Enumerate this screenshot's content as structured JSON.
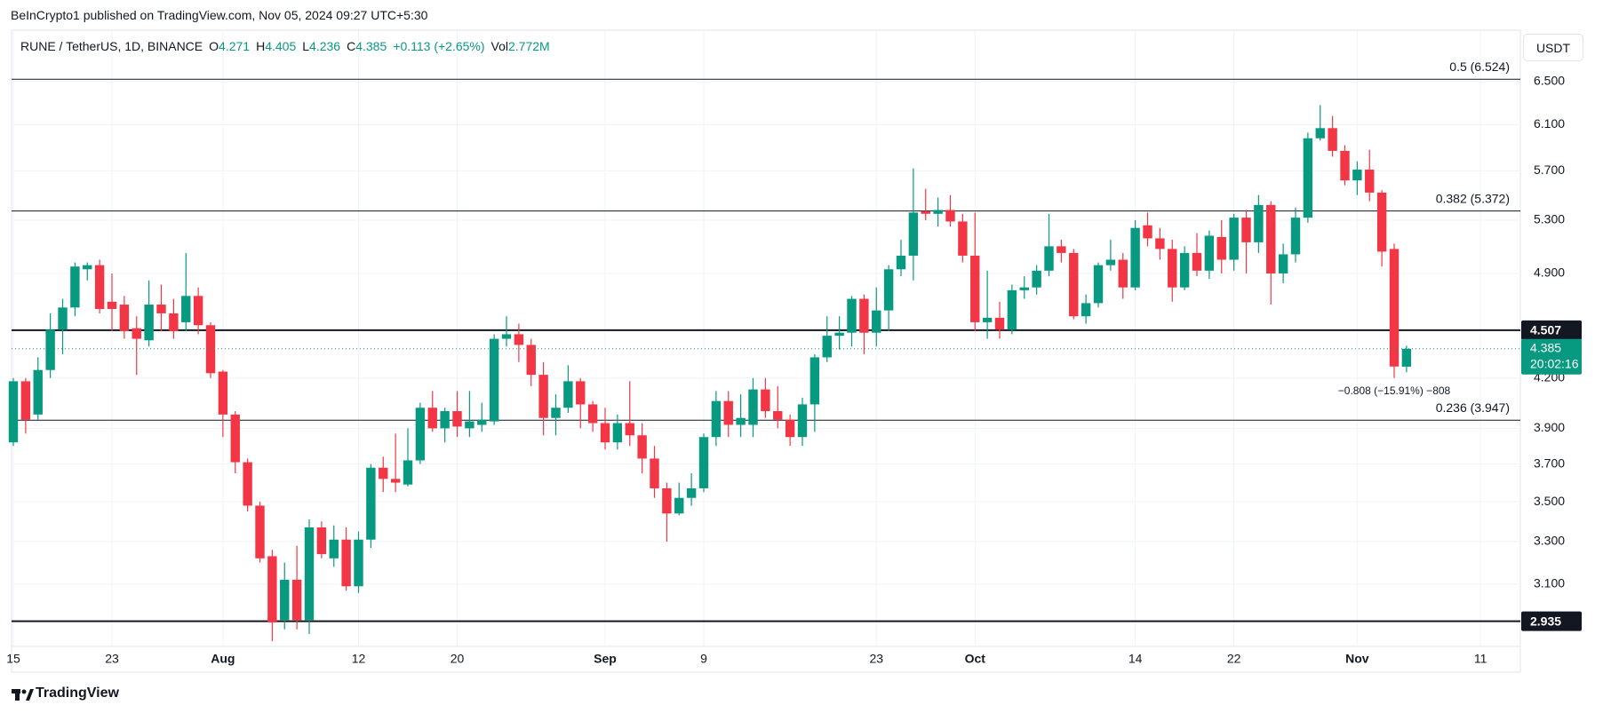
{
  "header": {
    "published": "BeInCrypto1 published on TradingView.com, Nov 05, 2024 09:27 UTC+5:30",
    "brand": "TradingView"
  },
  "chart_data": {
    "type": "candlestick",
    "legend": {
      "symbol": "RUNE / TetherUS, 1D, BINANCE",
      "ohlc_labels": [
        "O",
        "H",
        "L",
        "C"
      ],
      "change": "+0.113 (+2.65%)",
      "volume_label": "Vol",
      "volume": "2.772M"
    },
    "currency": "USDT",
    "categories": [
      "15",
      null,
      null,
      null,
      null,
      null,
      null,
      null,
      "23",
      null,
      null,
      null,
      null,
      null,
      null,
      null,
      null,
      "Aug",
      null,
      null,
      null,
      null,
      null,
      null,
      null,
      null,
      null,
      null,
      "12",
      null,
      null,
      null,
      null,
      null,
      null,
      null,
      "20",
      null,
      null,
      null,
      null,
      null,
      null,
      null,
      null,
      null,
      null,
      null,
      "Sep",
      null,
      null,
      null,
      null,
      null,
      null,
      null,
      "9",
      null,
      null,
      null,
      null,
      null,
      null,
      null,
      null,
      null,
      null,
      null,
      null,
      null,
      "23",
      null,
      null,
      null,
      null,
      null,
      null,
      null,
      "Oct",
      null,
      null,
      null,
      null,
      null,
      null,
      null,
      null,
      null,
      null,
      null,
      null,
      "14",
      null,
      null,
      null,
      null,
      null,
      null,
      null,
      "22",
      null,
      null,
      null,
      null,
      null,
      null,
      null,
      null,
      null,
      "Nov",
      null,
      null,
      null,
      null,
      null,
      null,
      null,
      null,
      null,
      "11"
    ],
    "open": [
      3.82,
      4.18,
      3.98,
      4.25,
      4.51,
      4.66,
      4.93,
      4.96,
      4.7,
      4.68,
      4.52,
      4.44,
      4.68,
      4.62,
      4.56,
      4.74,
      4.54,
      4.24,
      3.98,
      3.71,
      3.48,
      3.23,
      2.94,
      3.12,
      2.94,
      3.37,
      3.22,
      3.31,
      3.09,
      3.31,
      3.68,
      3.62,
      3.59,
      3.72,
      4.02,
      3.9,
      4.0,
      3.9,
      3.92,
      3.94,
      4.45,
      4.48,
      4.41,
      4.22,
      3.96,
      4.02,
      4.18,
      4.04,
      3.93,
      3.82,
      3.93,
      3.86,
      3.73,
      3.57,
      3.44,
      3.52,
      3.57,
      3.85,
      4.06,
      3.92,
      3.92,
      4.13,
      4.0,
      3.95,
      3.85,
      4.04,
      4.33,
      4.47,
      4.49,
      4.72,
      4.49,
      4.64,
      4.93,
      5.03,
      5.37,
      5.35,
      5.38,
      5.29,
      5.03,
      4.56,
      4.59,
      4.51,
      4.78,
      4.8,
      4.92,
      5.1,
      5.05,
      4.6,
      4.69,
      4.96,
      5.0,
      4.8,
      5.26,
      5.16,
      5.08,
      4.8,
      5.05,
      4.92,
      5.17,
      5.0,
      5.32,
      5.13,
      5.42,
      4.9,
      5.04,
      5.32,
      5.98,
      6.07,
      5.87,
      5.62,
      5.71,
      5.52,
      5.08,
      4.271,
      null,
      null,
      null,
      null,
      null,
      null
    ],
    "high": [
      4.2,
      4.2,
      4.33,
      4.62,
      4.72,
      4.98,
      4.98,
      5.0,
      4.9,
      4.74,
      4.6,
      4.85,
      4.82,
      4.72,
      5.05,
      4.8,
      4.56,
      4.25,
      4.0,
      3.73,
      3.5,
      3.26,
      3.2,
      3.28,
      3.41,
      3.4,
      3.38,
      3.37,
      3.35,
      3.7,
      3.74,
      3.87,
      3.9,
      4.05,
      4.12,
      4.02,
      4.12,
      4.12,
      4.05,
      4.48,
      4.6,
      4.55,
      4.45,
      4.3,
      4.1,
      4.28,
      4.2,
      4.06,
      4.02,
      3.98,
      4.18,
      3.93,
      3.8,
      3.6,
      3.6,
      3.65,
      3.87,
      4.12,
      4.12,
      4.1,
      4.2,
      4.2,
      4.15,
      3.98,
      4.08,
      4.35,
      4.6,
      4.6,
      4.74,
      4.75,
      4.8,
      4.96,
      5.15,
      5.72,
      5.55,
      5.48,
      5.5,
      5.35,
      5.36,
      4.92,
      4.7,
      4.82,
      4.88,
      4.96,
      5.35,
      5.15,
      5.08,
      4.75,
      4.98,
      5.15,
      5.05,
      5.3,
      5.36,
      5.24,
      5.15,
      5.1,
      5.2,
      5.22,
      5.3,
      5.35,
      5.38,
      5.5,
      5.45,
      5.12,
      5.4,
      6.03,
      6.28,
      6.18,
      5.92,
      5.78,
      5.88,
      5.54,
      5.12,
      4.405,
      null,
      null,
      null,
      null,
      null,
      null
    ],
    "low": [
      3.8,
      3.87,
      3.95,
      4.2,
      4.35,
      4.6,
      4.85,
      4.62,
      4.5,
      4.45,
      4.22,
      4.4,
      4.5,
      4.45,
      4.5,
      4.48,
      4.2,
      3.85,
      3.65,
      3.45,
      3.2,
      2.85,
      2.9,
      2.9,
      2.88,
      3.22,
      3.18,
      3.07,
      3.06,
      3.27,
      3.55,
      3.55,
      3.58,
      3.7,
      3.88,
      3.82,
      3.85,
      3.85,
      3.88,
      3.92,
      4.4,
      4.3,
      4.15,
      3.86,
      3.86,
      3.99,
      3.9,
      3.88,
      3.78,
      3.78,
      3.8,
      3.65,
      3.52,
      3.3,
      3.43,
      3.48,
      3.55,
      3.8,
      3.85,
      3.85,
      3.85,
      3.96,
      3.9,
      3.8,
      3.8,
      3.88,
      4.3,
      4.38,
      4.4,
      4.35,
      4.4,
      4.5,
      4.88,
      4.85,
      5.3,
      5.25,
      5.25,
      4.98,
      4.5,
      4.45,
      4.45,
      4.48,
      4.72,
      4.75,
      4.88,
      4.98,
      4.58,
      4.55,
      4.66,
      4.92,
      4.72,
      4.78,
      5.1,
      5.0,
      4.7,
      4.78,
      4.88,
      4.86,
      4.9,
      4.92,
      4.9,
      5.05,
      4.68,
      4.83,
      4.98,
      5.28,
      5.96,
      5.82,
      5.58,
      5.5,
      5.45,
      4.95,
      4.2,
      4.236,
      null,
      null,
      null,
      null,
      null,
      null
    ],
    "close": [
      4.18,
      3.95,
      4.25,
      4.51,
      4.66,
      4.95,
      4.96,
      4.65,
      4.65,
      4.5,
      4.45,
      4.68,
      4.62,
      4.5,
      4.74,
      4.54,
      4.23,
      3.98,
      3.71,
      3.48,
      3.22,
      2.93,
      3.12,
      2.94,
      3.37,
      3.24,
      3.31,
      3.09,
      3.31,
      3.68,
      3.62,
      3.6,
      3.72,
      4.02,
      3.9,
      4.0,
      3.91,
      3.94,
      3.95,
      4.45,
      4.48,
      4.41,
      4.22,
      3.96,
      4.02,
      4.18,
      4.04,
      3.93,
      3.82,
      3.93,
      3.86,
      3.73,
      3.57,
      3.44,
      3.52,
      3.57,
      3.85,
      4.06,
      3.92,
      3.96,
      4.13,
      4.0,
      3.95,
      3.85,
      4.04,
      4.33,
      4.47,
      4.49,
      4.72,
      4.49,
      4.64,
      4.93,
      5.03,
      5.36,
      5.35,
      5.38,
      5.29,
      5.03,
      4.56,
      4.59,
      4.51,
      4.78,
      4.8,
      4.92,
      5.1,
      5.05,
      4.6,
      4.69,
      4.96,
      5.0,
      4.8,
      5.24,
      5.16,
      5.08,
      4.8,
      5.05,
      4.92,
      5.18,
      5.0,
      5.32,
      5.13,
      5.42,
      4.9,
      5.04,
      5.32,
      5.98,
      6.07,
      5.87,
      5.62,
      5.71,
      5.52,
      5.06,
      4.272,
      4.385,
      null,
      null,
      null,
      null,
      null,
      null
    ],
    "up_color": "#089981",
    "down_color": "#f23645",
    "log_scale": true,
    "grid": true,
    "ylim": [
      2.828,
      7.008
    ],
    "yticks": [
      {
        "value": 3.1,
        "label": "3.100"
      },
      {
        "value": 3.3,
        "label": "3.300"
      },
      {
        "value": 3.5,
        "label": "3.500"
      },
      {
        "value": 3.7,
        "label": "3.700"
      },
      {
        "value": 3.9,
        "label": "3.900"
      },
      {
        "value": 4.2,
        "label": "4.200"
      },
      {
        "value": 4.9,
        "label": "4.900"
      },
      {
        "value": 5.3,
        "label": "5.300"
      },
      {
        "value": 5.7,
        "label": "5.700"
      },
      {
        "value": 6.1,
        "label": "6.100"
      },
      {
        "value": 6.5,
        "label": "6.500"
      }
    ],
    "levels": [
      {
        "label": "0.5 (6.524)",
        "value": 6.524
      },
      {
        "label": "0.382 (5.372)",
        "value": 5.372
      },
      {
        "label": "0.236 (3.947)",
        "value": 3.947
      }
    ],
    "price_lines": [
      4.507,
      2.935
    ],
    "countdown": "20:02:16",
    "annotations": [
      "−0.808 (−15.91%) −808"
    ]
  }
}
